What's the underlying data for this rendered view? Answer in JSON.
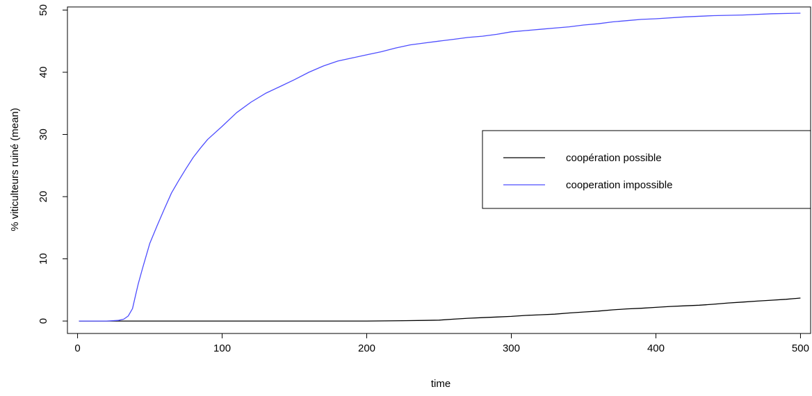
{
  "chart_data": {
    "type": "line",
    "title": "",
    "xlabel": "time",
    "ylabel": "% viticulteurs ruiné (mean)",
    "xlim": [
      -7,
      507
    ],
    "ylim": [
      -2,
      50.5
    ],
    "xticks": [
      0,
      100,
      200,
      300,
      400,
      500
    ],
    "yticks": [
      0,
      10,
      20,
      30,
      40,
      50
    ],
    "grid": false,
    "legend_position": "right",
    "series": [
      {
        "name": "coopération possible",
        "color": "#000000",
        "x": [
          1,
          50,
          100,
          150,
          200,
          225,
          240,
          250,
          260,
          270,
          280,
          290,
          300,
          310,
          320,
          330,
          340,
          350,
          360,
          370,
          380,
          390,
          400,
          410,
          420,
          430,
          440,
          450,
          460,
          470,
          480,
          490,
          500
        ],
        "y": [
          0,
          0,
          0,
          0,
          0,
          0.05,
          0.1,
          0.15,
          0.3,
          0.45,
          0.55,
          0.65,
          0.75,
          0.9,
          1.0,
          1.1,
          1.3,
          1.45,
          1.6,
          1.8,
          1.95,
          2.05,
          2.2,
          2.35,
          2.45,
          2.55,
          2.7,
          2.9,
          3.05,
          3.2,
          3.35,
          3.5,
          3.7
        ]
      },
      {
        "name": "cooperation impossible",
        "color": "#4d4dff",
        "x": [
          1,
          20,
          28,
          32,
          35,
          38,
          40,
          42,
          45,
          50,
          55,
          60,
          65,
          70,
          75,
          80,
          85,
          90,
          100,
          110,
          120,
          130,
          140,
          150,
          160,
          170,
          180,
          190,
          200,
          210,
          220,
          230,
          240,
          250,
          260,
          270,
          280,
          290,
          300,
          310,
          320,
          330,
          340,
          350,
          360,
          370,
          380,
          390,
          400,
          420,
          440,
          460,
          480,
          500
        ],
        "y": [
          0,
          0,
          0.1,
          0.3,
          0.8,
          2.0,
          4.0,
          6.0,
          8.5,
          12.5,
          15.3,
          18.0,
          20.6,
          22.6,
          24.5,
          26.3,
          27.8,
          29.2,
          31.3,
          33.5,
          35.2,
          36.6,
          37.7,
          38.8,
          40.0,
          41.0,
          41.8,
          42.3,
          42.8,
          43.3,
          43.9,
          44.4,
          44.7,
          45.0,
          45.3,
          45.6,
          45.8,
          46.1,
          46.5,
          46.7,
          46.9,
          47.1,
          47.3,
          47.6,
          47.8,
          48.1,
          48.3,
          48.5,
          48.6,
          48.9,
          49.1,
          49.2,
          49.4,
          49.5
        ]
      }
    ]
  }
}
